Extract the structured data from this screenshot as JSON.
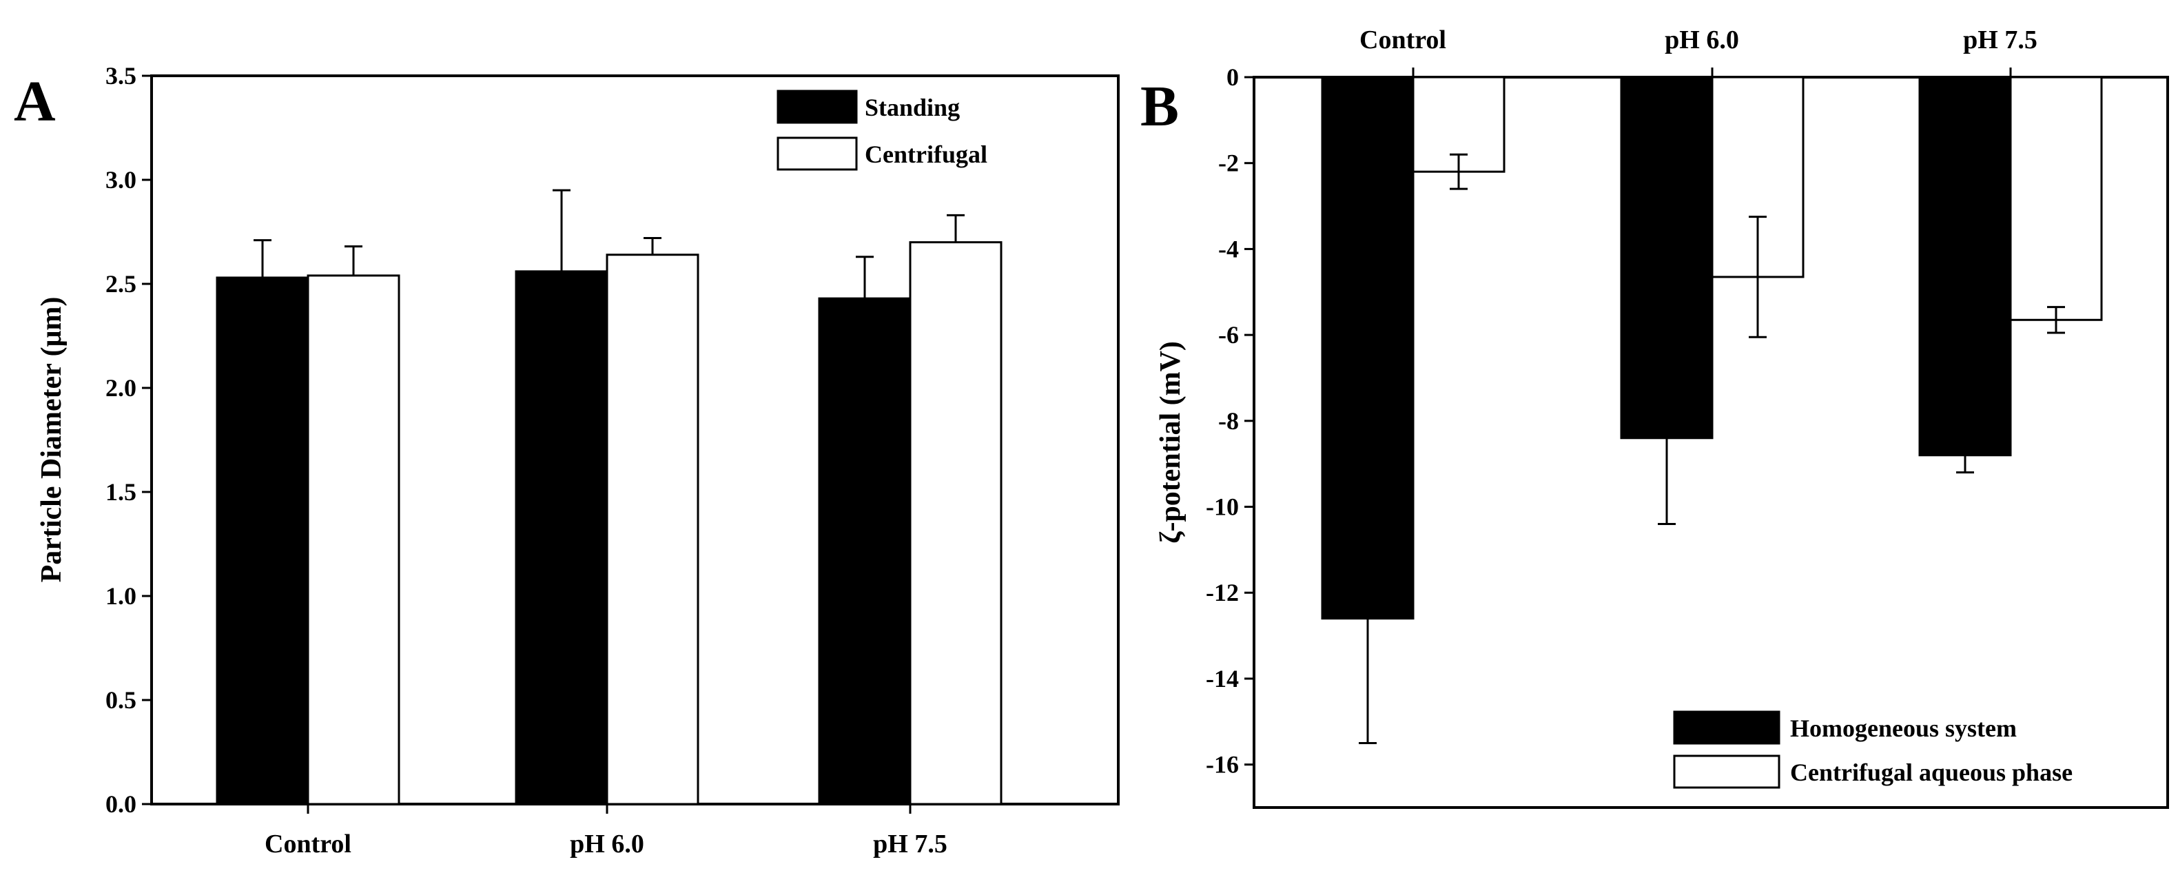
{
  "chart_data": [
    {
      "type": "bar",
      "panel_label": "A",
      "title": "",
      "xlabel": "",
      "ylabel": "Particle Diameter (μm)",
      "categories": [
        "Control",
        "pH 6.0",
        "pH 7.5"
      ],
      "ylim": [
        0.0,
        3.5
      ],
      "yticks": [
        "0.0",
        "0.5",
        "1.0",
        "1.5",
        "2.0",
        "2.5",
        "3.0",
        "3.5"
      ],
      "legend_position": "top-right",
      "series": [
        {
          "name": "Standing",
          "fill": "#000000",
          "values": [
            2.53,
            2.56,
            2.43
          ],
          "errors": [
            0.18,
            0.39,
            0.2
          ]
        },
        {
          "name": "Centrifugal",
          "fill": "#ffffff",
          "values": [
            2.54,
            2.64,
            2.7
          ],
          "errors": [
            0.14,
            0.08,
            0.13
          ]
        }
      ]
    },
    {
      "type": "bar",
      "panel_label": "B",
      "title": "",
      "xlabel": "",
      "ylabel": "ζ-potential (mV)",
      "categories": [
        "Control",
        "pH 6.0",
        "pH 7.5"
      ],
      "ylim": [
        -17,
        0
      ],
      "yticks": [
        "0",
        "-2",
        "-4",
        "-6",
        "-8",
        "-10",
        "-12",
        "-14",
        "-16"
      ],
      "category_axis_position": "top",
      "legend_position": "bottom-right",
      "series": [
        {
          "name": "Homogeneous system",
          "fill": "#000000",
          "values": [
            -12.6,
            -8.4,
            -8.8
          ],
          "errors": [
            2.9,
            2.0,
            0.4
          ]
        },
        {
          "name": "Centrifugal aqueous phase",
          "fill": "#ffffff",
          "values": [
            -2.2,
            -4.65,
            -5.65
          ],
          "errors": [
            0.4,
            1.4,
            0.3
          ]
        }
      ]
    }
  ]
}
